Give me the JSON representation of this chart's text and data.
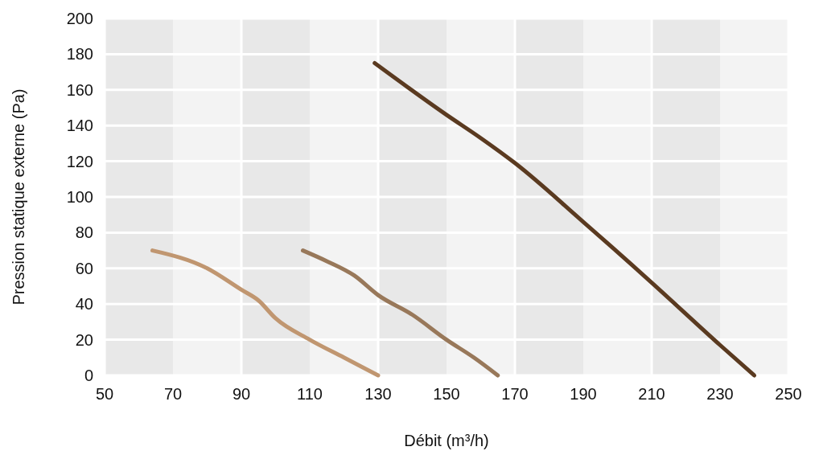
{
  "chart_data": {
    "type": "line",
    "xlabel": "Débit (m³/h)",
    "ylabel": "Pression statique externe (Pa)",
    "xlim": [
      50,
      250
    ],
    "xticks": [
      50,
      70,
      90,
      110,
      130,
      150,
      170,
      190,
      210,
      230,
      250
    ],
    "ylim": [
      0,
      200
    ],
    "yticks": [
      0,
      20,
      40,
      60,
      80,
      100,
      120,
      140,
      160,
      180,
      200
    ],
    "grid": true,
    "marker": "none",
    "line_style": "solid",
    "series": [
      {
        "color": "#c09670",
        "x": [
          64,
          80,
          90,
          95,
          100,
          110,
          120,
          130
        ],
        "values": [
          70,
          60,
          48,
          42,
          32,
          20,
          10,
          0
        ]
      },
      {
        "color": "#98785a",
        "x": [
          108,
          115,
          123,
          130,
          140,
          150,
          158,
          165
        ],
        "values": [
          70,
          64,
          56,
          45,
          34,
          20,
          10,
          0
        ]
      },
      {
        "color": "#5a3a20",
        "x": [
          129,
          150,
          160,
          170,
          190,
          210,
          230,
          240
        ],
        "values": [
          175,
          146,
          133,
          119,
          86,
          52,
          17,
          0
        ]
      }
    ]
  }
}
